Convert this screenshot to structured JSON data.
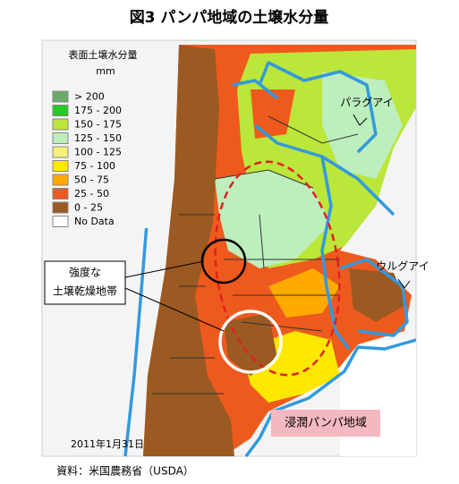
{
  "title": "図3 パンパ地域の土壌水分量",
  "legend": {
    "title": "表面土壌水分量",
    "unit": "mm",
    "items": [
      {
        "label": "> 200",
        "color": "#6aaa6a"
      },
      {
        "label": "175 - 200",
        "color": "#22cc22"
      },
      {
        "label": "150 - 175",
        "color": "#bbe63a"
      },
      {
        "label": "125 - 150",
        "color": "#bdeebd"
      },
      {
        "label": "100 - 125",
        "color": "#f2f27a"
      },
      {
        "label": "75 - 100",
        "color": "#ffe800"
      },
      {
        "label": "50 - 75",
        "color": "#ffaa00"
      },
      {
        "label": "25 - 50",
        "color": "#ee5a1e"
      },
      {
        "label": "0 - 25",
        "color": "#9a5a22"
      },
      {
        "label": "No Data",
        "color": "#ffffff"
      }
    ]
  },
  "labels": {
    "paraguay": "パラグアイ",
    "uruguay": "ウルグアイ",
    "dry_zone": [
      "強度な",
      "土壌乾燥地帯"
    ],
    "humid_pampa": "浸潤パンパ地域",
    "date": "2011年1月31日"
  },
  "source": "資料：米国農務省（USDA）"
}
